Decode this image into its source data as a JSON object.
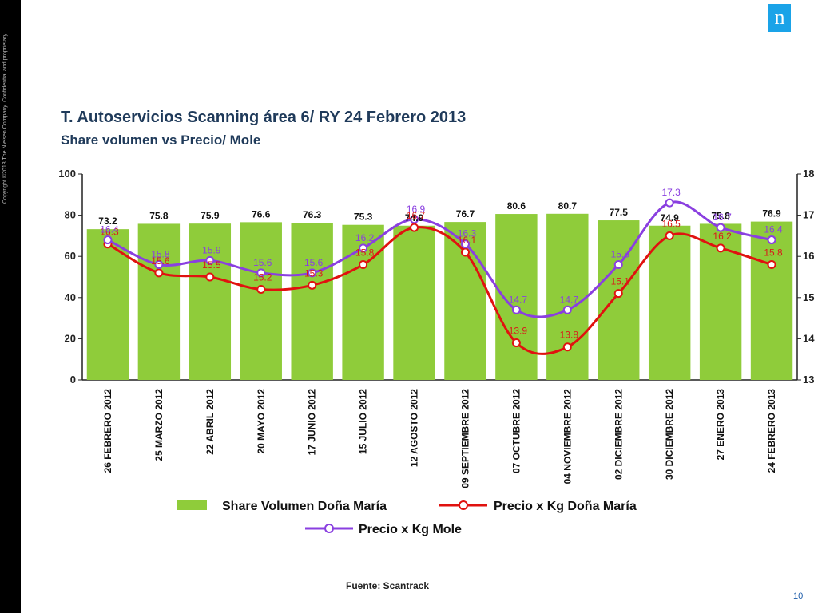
{
  "header": {
    "title": "T. Autoservicios Scanning  área 6/ RY 24 Febrero 2013",
    "subtitle": "Share volumen vs Precio/ Mole",
    "copyright": "Copyright ©2013 The Nielsen Company. Confidential and proprietary.",
    "logo_letter": "n"
  },
  "footer": {
    "source": "Fuente: Scantrack",
    "page_number": "10"
  },
  "colors": {
    "bar": "#8fcc3a",
    "red_line": "#e0120f",
    "purple_line": "#8a3fe0",
    "title": "#1f3a5a",
    "logo": "#1aa3e8"
  },
  "chart_data": {
    "type": "bar",
    "categories": [
      "26 FEBRERO 2012",
      "25 MARZO 2012",
      "22 ABRIL 2012",
      "20 MAYO 2012",
      "17 JUNIO 2012",
      "15 JULIO 2012",
      "12 AGOSTO 2012",
      "09 SEPTIEMBRE 2012",
      "07 OCTUBRE 2012",
      "04 NOVIEMBRE 2012",
      "02 DICIEMBRE 2012",
      "30 DICIEMBRE 2012",
      "27 ENERO 2013",
      "24 FEBRERO 2013"
    ],
    "series": [
      {
        "name": "Share Volumen Doña María",
        "type": "bar",
        "axis": "left",
        "values": [
          73.2,
          75.8,
          75.9,
          76.6,
          76.3,
          75.3,
          74.9,
          76.7,
          80.6,
          80.7,
          77.5,
          74.9,
          75.8,
          76.9
        ]
      },
      {
        "name": "Precio x Kg Doña María",
        "type": "line",
        "axis": "right",
        "values": [
          16.3,
          15.6,
          15.5,
          15.2,
          15.3,
          15.8,
          16.7,
          16.1,
          13.9,
          13.8,
          15.1,
          16.5,
          16.2,
          15.8
        ],
        "labels": [
          "16.3",
          "15.6",
          "15.5",
          "15.2",
          "15.3",
          "15.8",
          "16.7",
          "16.1",
          "13.9",
          "13.8",
          "15.1",
          "16.5",
          "16.2",
          "15.8"
        ]
      },
      {
        "name": "Precio x Kg Mole",
        "type": "line",
        "axis": "right",
        "values": [
          16.4,
          15.8,
          15.9,
          15.6,
          15.6,
          16.2,
          16.9,
          16.3,
          14.7,
          14.7,
          15.8,
          17.3,
          16.7,
          16.4
        ],
        "labels": [
          "16.4",
          "15.8",
          "15.9",
          "15.6",
          "15.6",
          "16.2",
          "16.9",
          "16.3",
          "14.7",
          "14.7",
          "15.8",
          "17.3",
          "16.7",
          "16.4"
        ]
      }
    ],
    "ylim_left": [
      0,
      100
    ],
    "ylim_right": [
      13,
      18
    ],
    "yticks_left": [
      "0",
      "20",
      "40",
      "60",
      "80",
      "100"
    ],
    "yticks_right": [
      "13",
      "14",
      "15",
      "16",
      "17",
      "18"
    ],
    "grid": false,
    "legend": "bottom"
  }
}
